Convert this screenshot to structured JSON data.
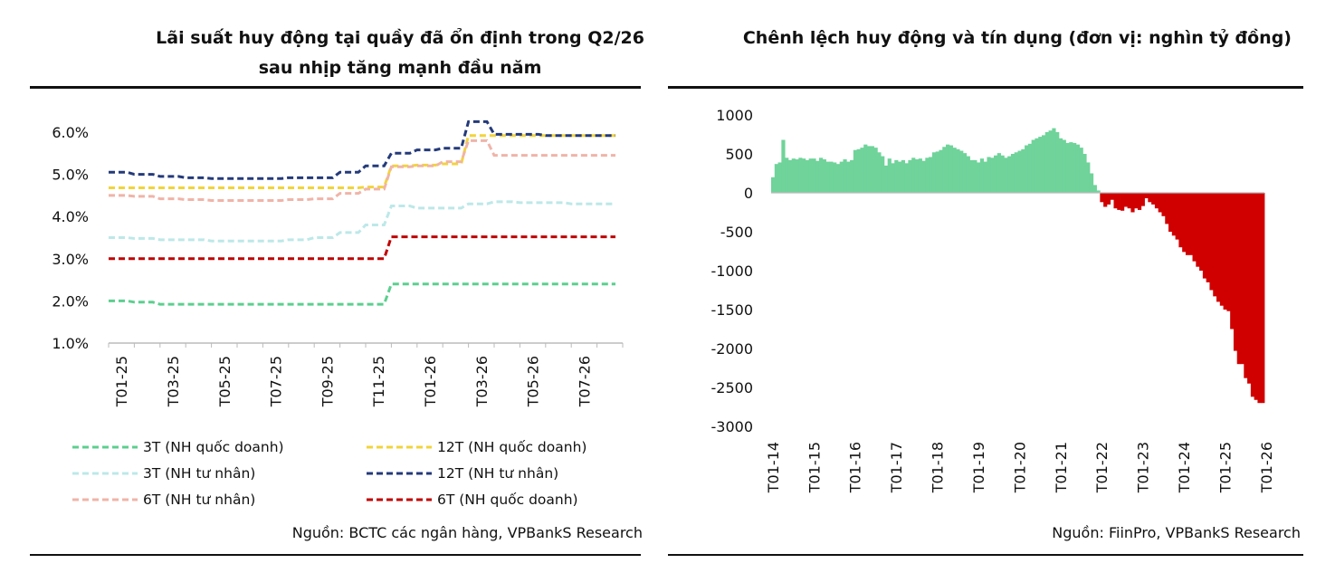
{
  "left": {
    "title_line1": "Lãi suất huy động tại quầy đã ổn định trong Q2/26",
    "title_line2": "sau nhịp tăng mạnh đầu năm",
    "source": "Nguồn: BCTC các ngân hàng, VPBankS Research"
  },
  "right": {
    "title": "Chênh lệch huy động và tín dụng (đơn vị: nghìn tỷ đồng)",
    "source": "Nguồn: FiinPro, VPBankS Research"
  },
  "chart_data": [
    {
      "type": "line",
      "title": "Lãi suất huy động tại quầy đã ổn định trong Q2/26 sau nhịp tăng mạnh đầu năm",
      "ylim": [
        1.0,
        6.0
      ],
      "ytick_labels": [
        "1.0%",
        "2.0%",
        "3.0%",
        "4.0%",
        "5.0%",
        "6.0%"
      ],
      "yticks": [
        1,
        2,
        3,
        4,
        5,
        6
      ],
      "x": [
        "T01-25",
        "T02-25",
        "T03-25",
        "T04-25",
        "T05-25",
        "T06-25",
        "T07-25",
        "T08-25",
        "T09-25",
        "T10-25",
        "T11-25",
        "T12-25",
        "T01-26",
        "T02-26",
        "T03-26",
        "T04-26",
        "T05-26",
        "T06-26",
        "T07-26",
        "T08-26"
      ],
      "xtick_labels": [
        "T01-25",
        "T03-25",
        "T05-25",
        "T07-25",
        "T09-25",
        "T11-25",
        "T01-26",
        "T03-26",
        "T05-26",
        "T07-26"
      ],
      "legend": "bottom",
      "series": [
        {
          "name": "3T (NH quốc doanh)",
          "color": "#5ccf8f",
          "values": [
            2.0,
            1.97,
            1.92,
            1.92,
            1.92,
            1.92,
            1.92,
            1.92,
            1.92,
            1.92,
            1.92,
            2.4,
            2.4,
            2.4,
            2.4,
            2.4,
            2.4,
            2.4,
            2.4,
            2.4
          ]
        },
        {
          "name": "12T (NH quốc doanh)",
          "color": "#f2d43a",
          "values": [
            4.68,
            4.68,
            4.68,
            4.68,
            4.68,
            4.68,
            4.68,
            4.68,
            4.68,
            4.68,
            4.7,
            5.2,
            5.22,
            5.25,
            5.92,
            5.92,
            5.92,
            5.92,
            5.92,
            5.92
          ]
        },
        {
          "name": "3T (NH tư nhân)",
          "color": "#bde8e8",
          "values": [
            3.5,
            3.48,
            3.45,
            3.45,
            3.42,
            3.42,
            3.42,
            3.45,
            3.5,
            3.62,
            3.8,
            4.25,
            4.2,
            4.2,
            4.3,
            4.35,
            4.33,
            4.33,
            4.3,
            4.3
          ]
        },
        {
          "name": "12T (NH tư nhân)",
          "color": "#243a7a",
          "values": [
            5.05,
            5.0,
            4.95,
            4.92,
            4.9,
            4.9,
            4.9,
            4.92,
            4.92,
            5.05,
            5.2,
            5.5,
            5.58,
            5.62,
            6.25,
            5.95,
            5.95,
            5.92,
            5.92,
            5.92
          ]
        },
        {
          "name": "6T (NH tư nhân)",
          "color": "#f0b4a8",
          "values": [
            4.5,
            4.48,
            4.42,
            4.4,
            4.38,
            4.38,
            4.38,
            4.4,
            4.42,
            4.55,
            4.65,
            5.18,
            5.2,
            5.3,
            5.8,
            5.45,
            5.45,
            5.45,
            5.45,
            5.45
          ]
        },
        {
          "name": "6T (NH quốc doanh)",
          "color": "#c00000",
          "values": [
            3.0,
            3.0,
            3.0,
            3.0,
            3.0,
            3.0,
            3.0,
            3.0,
            3.0,
            3.0,
            3.0,
            3.52,
            3.52,
            3.52,
            3.52,
            3.52,
            3.52,
            3.52,
            3.52,
            3.52
          ]
        }
      ]
    },
    {
      "type": "bar",
      "title": "Chênh lệch huy động và tín dụng (đơn vị: nghìn tỷ đồng)",
      "ylim": [
        -3000,
        1000
      ],
      "yticks": [
        1000,
        500,
        0,
        -500,
        -1000,
        -1500,
        -2000,
        -2500,
        -3000
      ],
      "xtick_labels": [
        "T01-14",
        "T01-15",
        "T01-16",
        "T01-17",
        "T01-18",
        "T01-19",
        "T01-20",
        "T01-21",
        "T01-22",
        "T01-23",
        "T01-24",
        "T01-25",
        "T01-26"
      ],
      "positive_color": "#6fd39a",
      "negative_color": "#d10000",
      "start": "T01-14",
      "frequency": "monthly",
      "values": [
        200,
        370,
        390,
        680,
        450,
        420,
        440,
        430,
        450,
        440,
        420,
        440,
        440,
        410,
        450,
        430,
        400,
        400,
        390,
        370,
        400,
        430,
        400,
        420,
        550,
        560,
        580,
        620,
        600,
        600,
        580,
        520,
        470,
        350,
        440,
        380,
        420,
        400,
        420,
        380,
        420,
        450,
        430,
        440,
        410,
        450,
        460,
        520,
        530,
        550,
        590,
        620,
        610,
        580,
        560,
        540,
        510,
        470,
        420,
        420,
        390,
        440,
        400,
        460,
        450,
        480,
        510,
        480,
        450,
        470,
        500,
        520,
        540,
        560,
        610,
        630,
        680,
        700,
        720,
        740,
        780,
        800,
        830,
        780,
        700,
        680,
        640,
        650,
        640,
        620,
        580,
        500,
        390,
        250,
        100,
        30,
        -120,
        -180,
        -150,
        -90,
        -200,
        -220,
        -230,
        -180,
        -200,
        -250,
        -200,
        -220,
        -170,
        -70,
        -120,
        -150,
        -200,
        -250,
        -300,
        -400,
        -500,
        -550,
        -600,
        -700,
        -760,
        -800,
        -800,
        -880,
        -950,
        -1000,
        -1100,
        -1150,
        -1250,
        -1330,
        -1400,
        -1450,
        -1500,
        -1520,
        -1750,
        -2030,
        -2200,
        -2200,
        -2380,
        -2450,
        -2620,
        -2660,
        -2700,
        -2700
      ]
    }
  ]
}
